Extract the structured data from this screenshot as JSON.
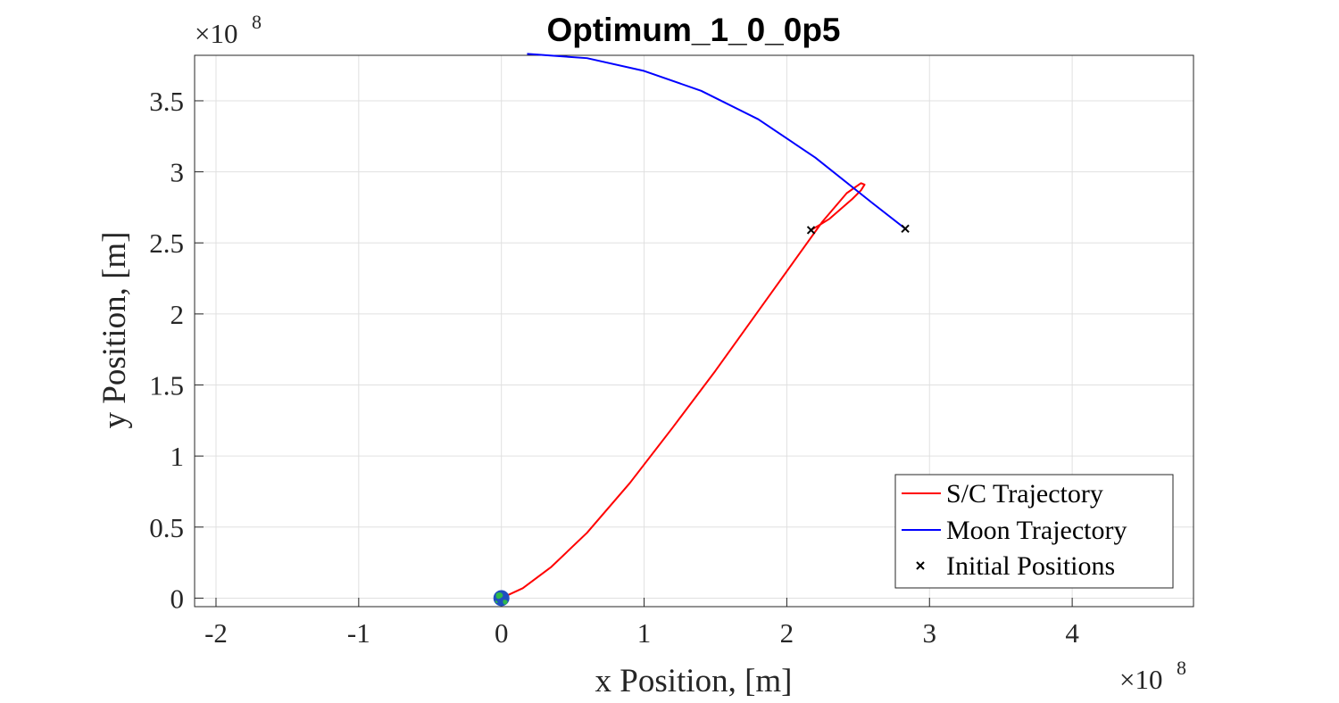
{
  "chart_data": {
    "type": "line",
    "title": "Optimum_1_0_0p5",
    "xlabel": "x Position, [m]",
    "ylabel": "y Position, [m]",
    "x_multiplier": "×10",
    "x_multiplier_exp": "8",
    "y_multiplier": "×10",
    "y_multiplier_exp": "8",
    "xlim": [
      -2.15,
      4.85
    ],
    "ylim": [
      -0.06,
      3.82
    ],
    "xticks": [
      -2,
      -1,
      0,
      1,
      2,
      3,
      4
    ],
    "xtick_labels": [
      "-2",
      "-1",
      "0",
      "1",
      "2",
      "3",
      "4"
    ],
    "yticks": [
      0,
      0.5,
      1,
      1.5,
      2,
      2.5,
      3,
      3.5
    ],
    "ytick_labels": [
      "0",
      "0.5",
      "1",
      "1.5",
      "2",
      "2.5",
      "3",
      "3.5"
    ],
    "grid": true,
    "legend_position": "bottom-right",
    "series": [
      {
        "name": "S/C Trajectory",
        "color": "#ff0000",
        "x": [
          0.0,
          0.15,
          0.35,
          0.6,
          0.9,
          1.2,
          1.5,
          1.8,
          2.05,
          2.25,
          2.42,
          2.52,
          2.545,
          2.52,
          2.46,
          2.38,
          2.3,
          2.22,
          2.17
        ],
        "y": [
          0.0,
          0.07,
          0.22,
          0.46,
          0.81,
          1.2,
          1.6,
          2.02,
          2.37,
          2.65,
          2.85,
          2.92,
          2.91,
          2.87,
          2.81,
          2.74,
          2.67,
          2.62,
          2.59
        ]
      },
      {
        "name": "Moon Trajectory",
        "color": "#0000ff",
        "x": [
          0.18,
          0.6,
          1.0,
          1.4,
          1.8,
          2.2,
          2.6,
          2.83
        ],
        "y": [
          3.83,
          3.8,
          3.71,
          3.57,
          3.37,
          3.1,
          2.78,
          2.6
        ]
      },
      {
        "name": "Initial Positions",
        "color": "#000000",
        "marker": "x",
        "x": [
          2.17,
          2.83
        ],
        "y": [
          2.59,
          2.6
        ]
      }
    ],
    "earth_marker": {
      "x": 0.0,
      "y": 0.0,
      "colors": [
        "#1f4fbf",
        "#2fb84a"
      ]
    }
  }
}
